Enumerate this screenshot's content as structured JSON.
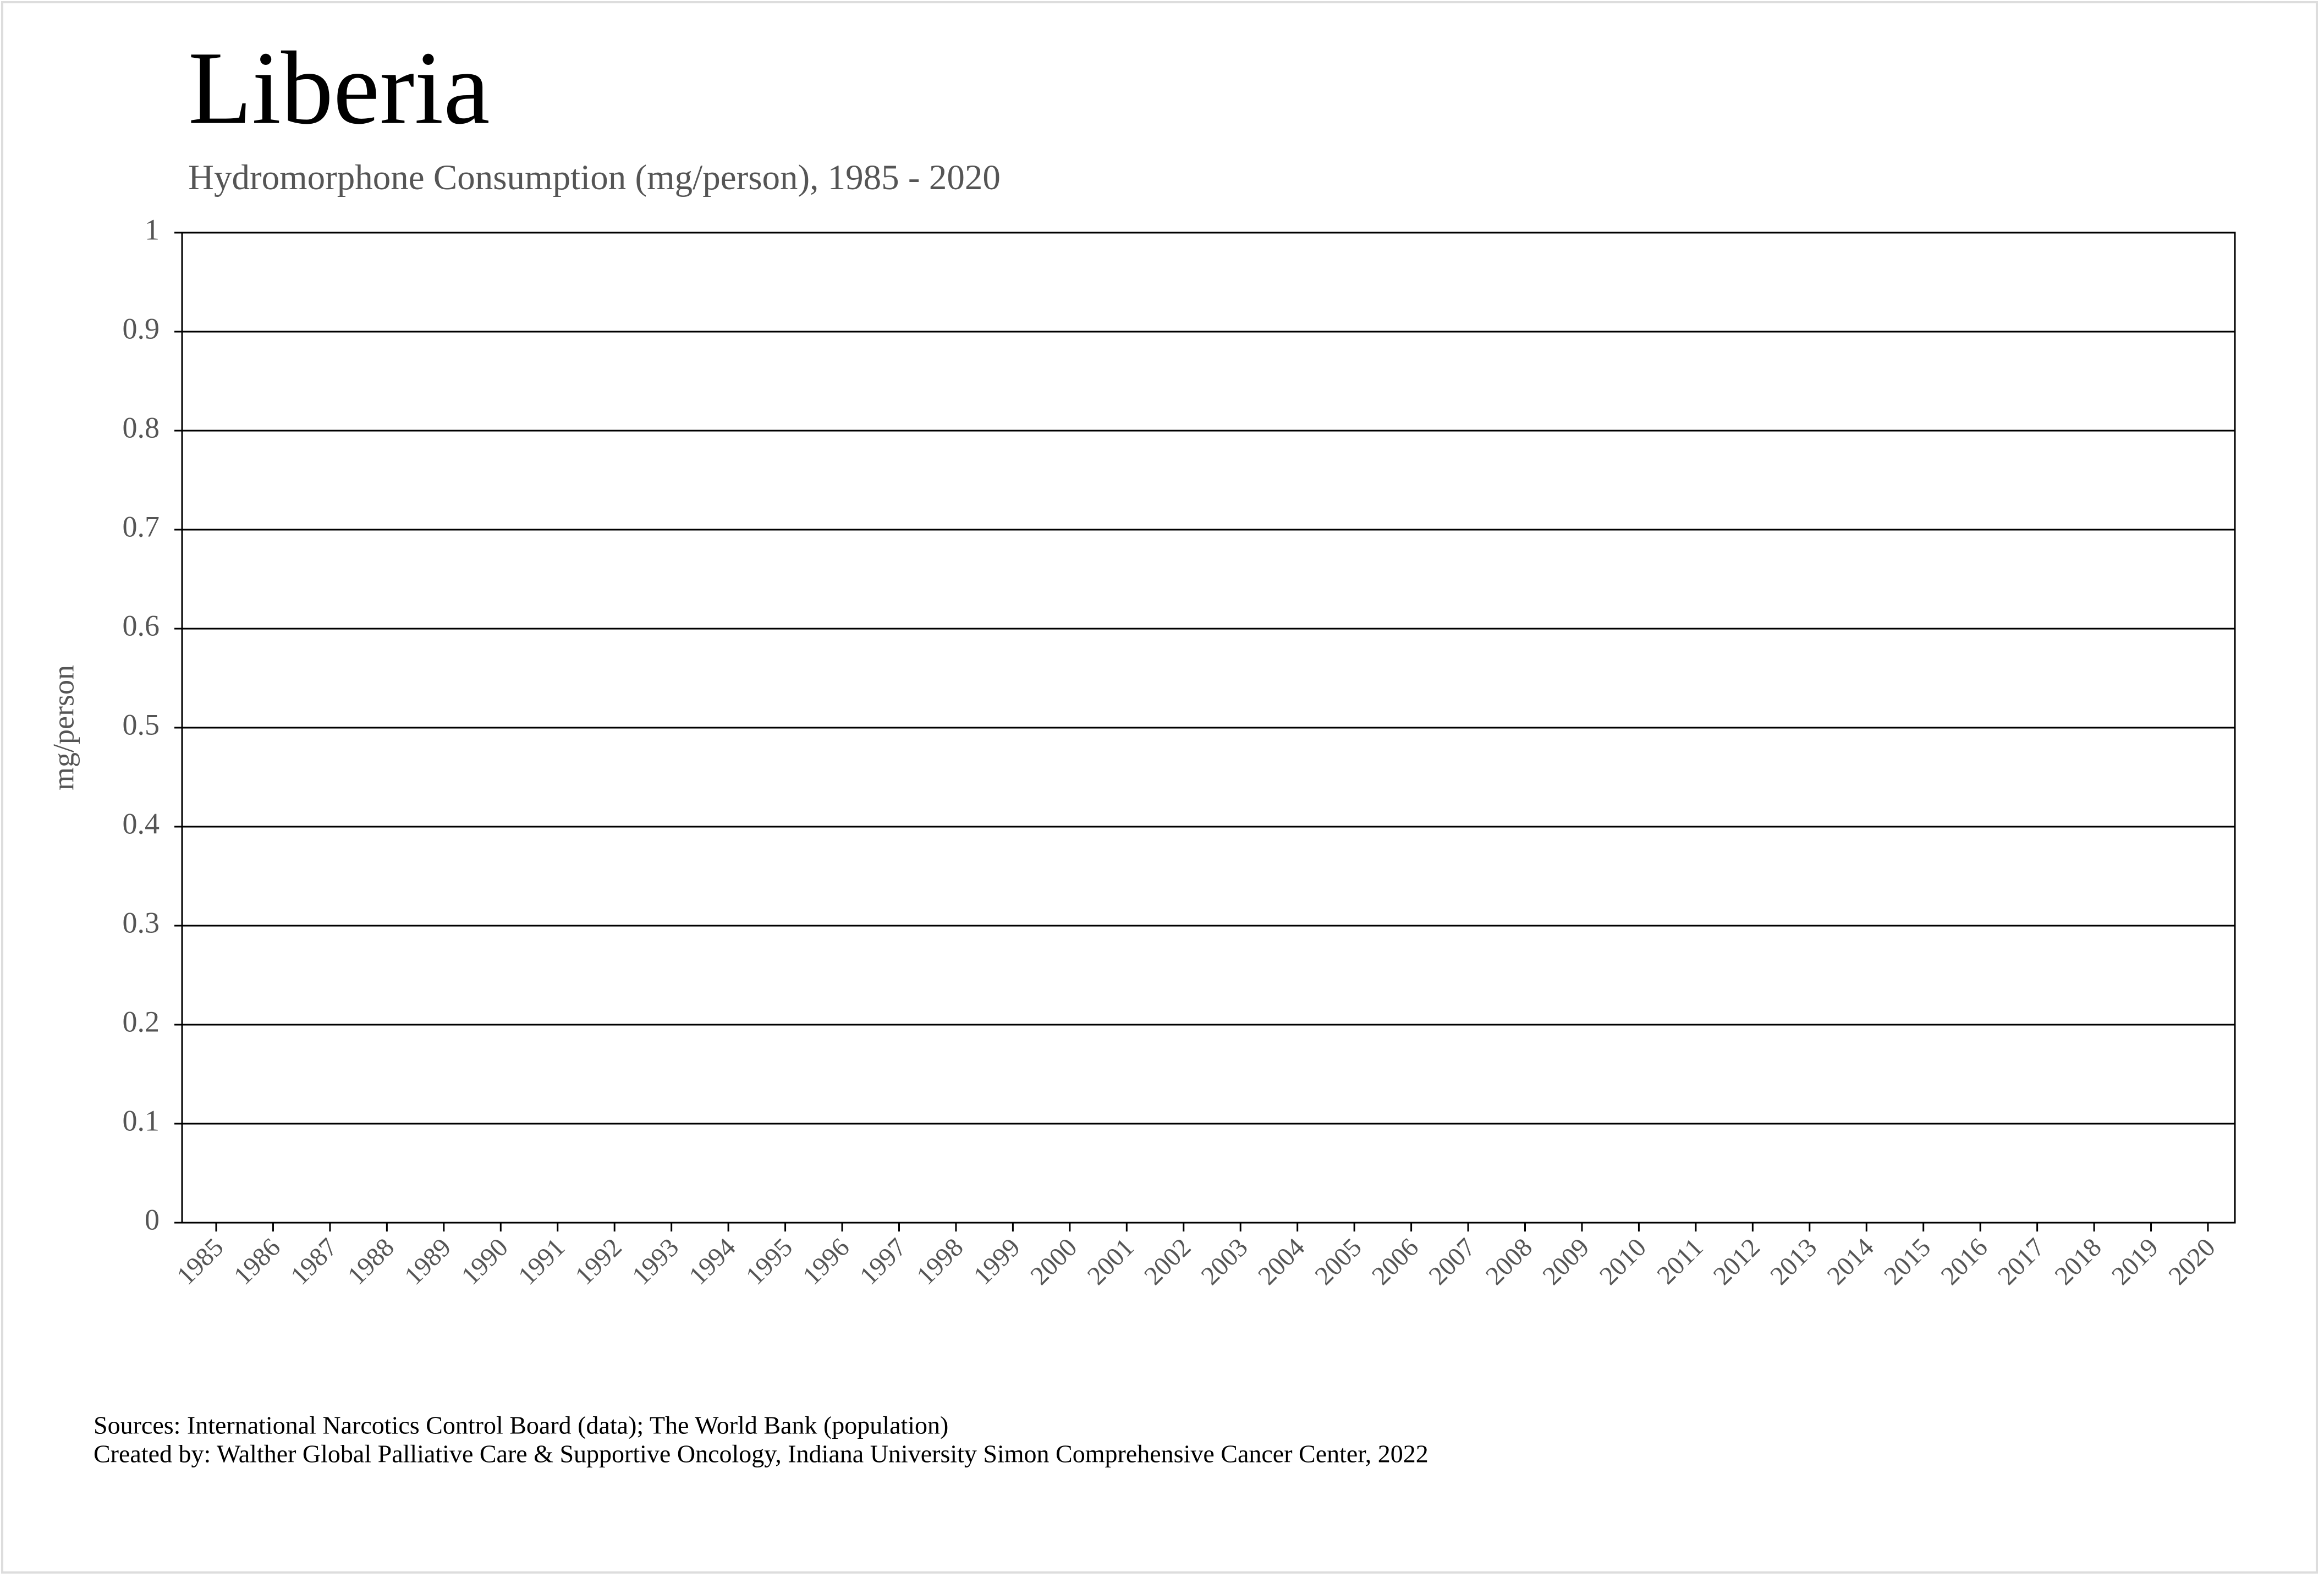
{
  "chart_data": {
    "type": "line",
    "title": "Liberia",
    "subtitle": "Hydromorphone Consumption (mg/person), 1985 - 2020",
    "y_label": "mg/person",
    "x": [
      1985,
      1986,
      1987,
      1988,
      1989,
      1990,
      1991,
      1992,
      1993,
      1994,
      1995,
      1996,
      1997,
      1998,
      1999,
      2000,
      2001,
      2002,
      2003,
      2004,
      2005,
      2006,
      2007,
      2008,
      2009,
      2010,
      2011,
      2012,
      2013,
      2014,
      2015,
      2016,
      2017,
      2018,
      2019,
      2020
    ],
    "series": [],
    "ylim": [
      0,
      1
    ],
    "yticks": [
      0,
      0.1,
      0.2,
      0.3,
      0.4,
      0.5,
      0.6,
      0.7,
      0.8,
      0.9,
      1
    ],
    "grid": true,
    "sources": "Sources: International Narcotics Control Board (data); The World Bank (population)",
    "credits": "Created by: Walther Global Palliative Care & Supportive Oncology, Indiana University Simon Comprehensive Cancer Center, 2022"
  }
}
